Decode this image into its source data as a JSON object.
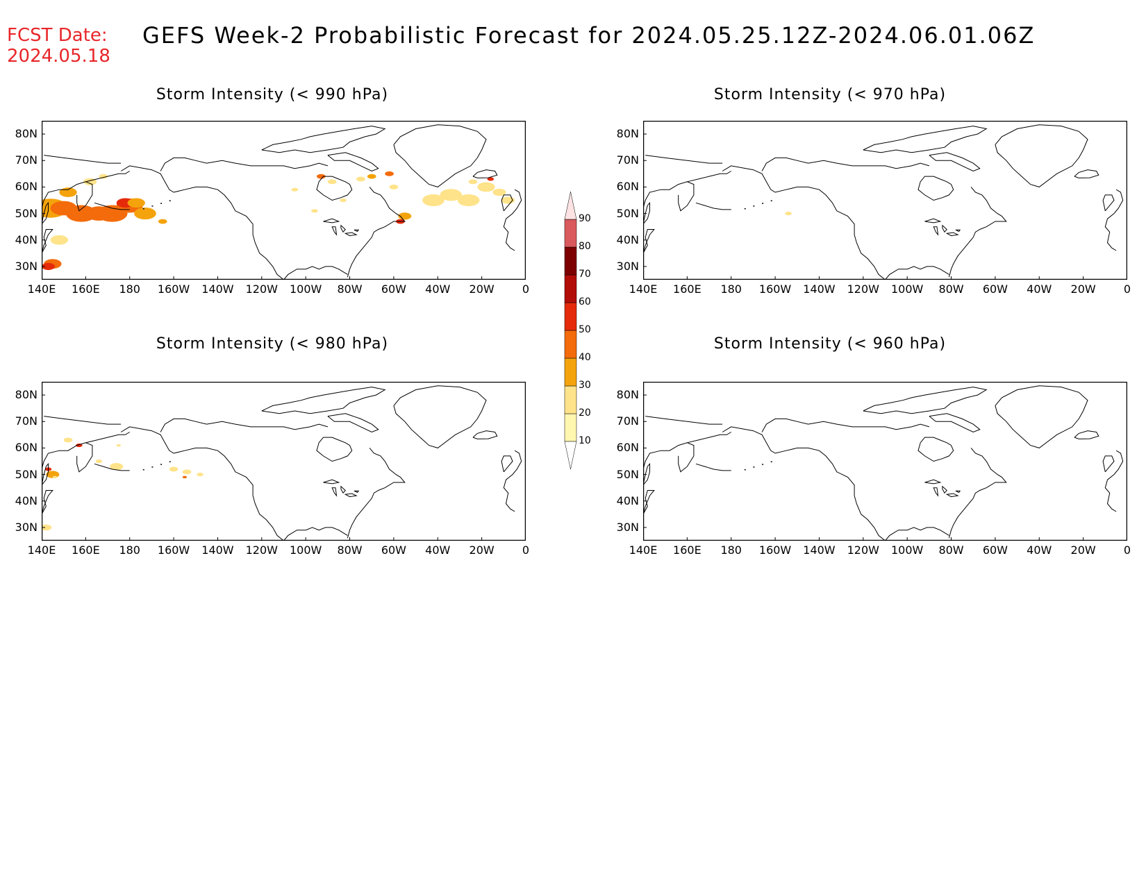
{
  "header": {
    "fcst_label": "FCST Date:",
    "fcst_date": "2024.05.18",
    "title": "GEFS Week-2 Probabilistic Forecast for 2024.05.25.12Z-2024.06.01.06Z"
  },
  "panels": [
    {
      "id": "p990",
      "title": "Storm Intensity (< 990 hPa)"
    },
    {
      "id": "p970",
      "title": "Storm Intensity (< 970 hPa)"
    },
    {
      "id": "p980",
      "title": "Storm Intensity (< 980 hPa)"
    },
    {
      "id": "p960",
      "title": "Storm Intensity (< 960 hPa)"
    }
  ],
  "axes": {
    "lat_ticks": [
      "80N",
      "70N",
      "60N",
      "50N",
      "40N",
      "30N"
    ],
    "lon_ticks": [
      "140E",
      "160E",
      "180",
      "160W",
      "140W",
      "120W",
      "100W",
      "80W",
      "60W",
      "40W",
      "20W",
      "0"
    ]
  },
  "colorbar": {
    "levels": [
      "10",
      "20",
      "30",
      "40",
      "50",
      "60",
      "70",
      "80",
      "90"
    ],
    "colors": [
      "#fff6b0",
      "#ffe38a",
      "#f4a30c",
      "#f36b0b",
      "#e52a0a",
      "#b20d07",
      "#7d0000",
      "#d9595c",
      "#f2a3a5",
      "#fde3e3"
    ]
  },
  "map_style": {
    "coast_color": "#000000",
    "land_fill": "#ffffff"
  }
}
